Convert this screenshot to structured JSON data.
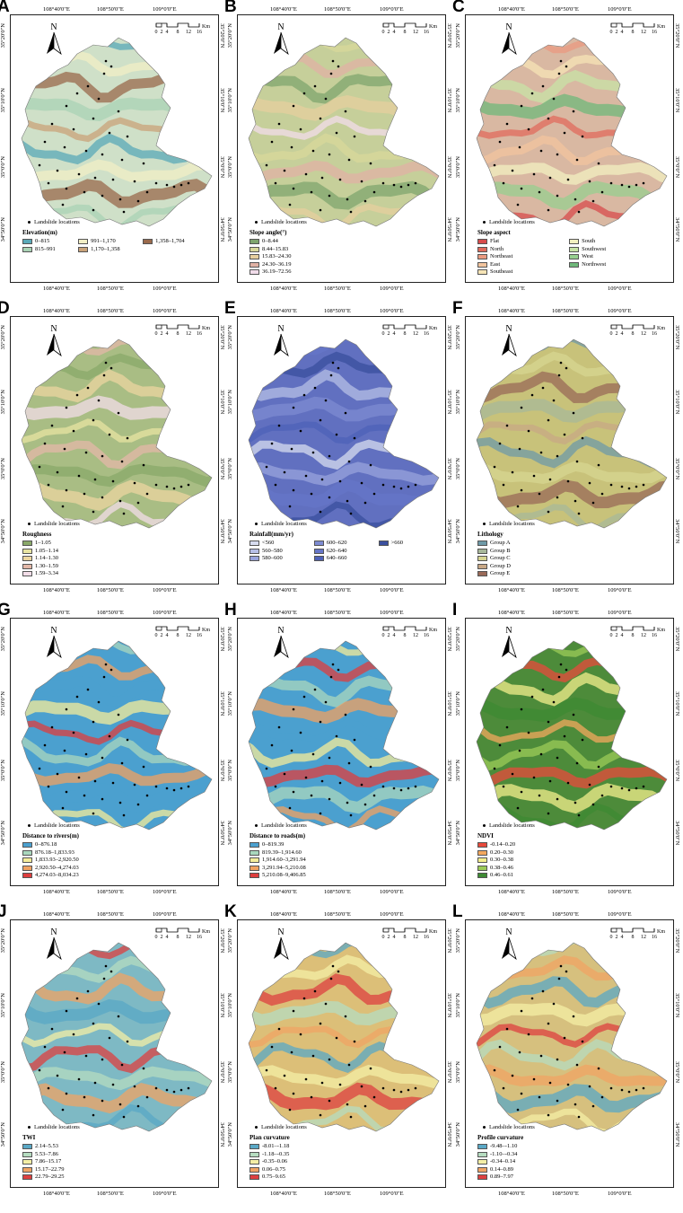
{
  "lon_labels": [
    "108°40'0\"E",
    "108°50'0\"E",
    "109°0'0\"E"
  ],
  "lat_labels": [
    "35°20'0\"N",
    "35°10'0\"N",
    "35°0'0\"N",
    "34°50'0\"N"
  ],
  "north_label": "N",
  "scale": {
    "ticks": [
      "0",
      "2",
      "4",
      "8",
      "12",
      "16"
    ],
    "unit": "Km"
  },
  "landslide_label": "Landslide locations",
  "panels": [
    {
      "letter": "A",
      "title": "Elevation(m)",
      "rows": 2,
      "bg": "#cfe0c8",
      "classes": [
        {
          "label": "0–815",
          "color": "#5aa9b8"
        },
        {
          "label": "815–991",
          "color": "#a9d3b5"
        },
        {
          "label": "991–1,170",
          "color": "#f2efc6"
        },
        {
          "label": "1,170–1,358",
          "color": "#c9a37a"
        },
        {
          "label": "1,358–1,704",
          "color": "#9a6a4c"
        }
      ]
    },
    {
      "letter": "B",
      "title": "Slope angle(°)",
      "rows": 5,
      "bg": "#c6cf9a",
      "classes": [
        {
          "label": "0–8.44",
          "color": "#7fa56e"
        },
        {
          "label": "8.44–15.83",
          "color": "#d8d89a"
        },
        {
          "label": "15.83–24.30",
          "color": "#e6cf9e"
        },
        {
          "label": "24.30–36.19",
          "color": "#e0b1a4"
        },
        {
          "label": "36.19–72.56",
          "color": "#f1dcea"
        }
      ]
    },
    {
      "letter": "C",
      "title": "Slope aspect",
      "rows": 5,
      "bg": "#d9b8a2",
      "classes": [
        {
          "label": "Flat",
          "color": "#d74c4c"
        },
        {
          "label": "North",
          "color": "#e06b5c"
        },
        {
          "label": "Northeast",
          "color": "#ea9a80"
        },
        {
          "label": "East",
          "color": "#f2c49e"
        },
        {
          "label": "Southeast",
          "color": "#f6e4b6"
        },
        {
          "label": "South",
          "color": "#f2f0c0"
        },
        {
          "label": "Southwest",
          "color": "#c7e3a5"
        },
        {
          "label": "West",
          "color": "#97cf8f"
        },
        {
          "label": "Northwest",
          "color": "#6fb87a"
        }
      ]
    },
    {
      "letter": "D",
      "title": "Roughness",
      "rows": 5,
      "bg": "#a9bd84",
      "classes": [
        {
          "label": "1–1.05",
          "color": "#8aa96a"
        },
        {
          "label": "1.05–1.14",
          "color": "#e8e4a2"
        },
        {
          "label": "1.14–1.30",
          "color": "#ecd6a0"
        },
        {
          "label": "1.30–1.59",
          "color": "#e4b8a8"
        },
        {
          "label": "1.59–3.34",
          "color": "#f3dde8"
        }
      ]
    },
    {
      "letter": "E",
      "title": "Rainfall(mm/yr)",
      "rows": 3,
      "bg": "#6170c0",
      "classes": [
        {
          "label": "<560",
          "color": "#d7dcef"
        },
        {
          "label": "560–580",
          "color": "#b6bfe6"
        },
        {
          "label": "580–600",
          "color": "#98a3dc"
        },
        {
          "label": "600–620",
          "color": "#7d8bd2"
        },
        {
          "label": "620–640",
          "color": "#6676c8"
        },
        {
          "label": "640–660",
          "color": "#4e61b8"
        },
        {
          "label": ">660",
          "color": "#3a4f9e"
        }
      ]
    },
    {
      "letter": "F",
      "title": "Lithology",
      "rows": 5,
      "bg": "#c8c27a",
      "classes": [
        {
          "label": "Group A",
          "color": "#6f9aa8"
        },
        {
          "label": "Group B",
          "color": "#a8b89a"
        },
        {
          "label": "Group C",
          "color": "#d7d592"
        },
        {
          "label": "Group D",
          "color": "#c8a886"
        },
        {
          "label": "Group E",
          "color": "#9a6a58"
        }
      ]
    },
    {
      "letter": "G",
      "title": "Distance to rivers(m)",
      "rows": 5,
      "bg": "#4ba0cf",
      "classes": [
        {
          "label": "0–876.18",
          "color": "#4ba0cf"
        },
        {
          "label": "876.18–1,833.93",
          "color": "#a9d7bd"
        },
        {
          "label": "1,833.93–2,920.50",
          "color": "#f4ec9a"
        },
        {
          "label": "2,920.50–4,274.03",
          "color": "#f0a262"
        },
        {
          "label": "4,274.03–8,034.23",
          "color": "#dd3e3e"
        }
      ]
    },
    {
      "letter": "H",
      "title": "Distance to roads(m)",
      "rows": 5,
      "bg": "#4ba0cf",
      "classes": [
        {
          "label": "0–819.39",
          "color": "#4ba0cf"
        },
        {
          "label": "819.39–1,914.60",
          "color": "#a9d7bd"
        },
        {
          "label": "1,914.60–3,291.94",
          "color": "#f4ec9a"
        },
        {
          "label": "3,291.94–5,210.08",
          "color": "#f0a262"
        },
        {
          "label": "5,210.08–9,406.85",
          "color": "#dd3e3e"
        }
      ]
    },
    {
      "letter": "I",
      "title": "NDVI",
      "rows": 5,
      "bg": "#4d8b3a",
      "classes": [
        {
          "label": "-0.14–0.20",
          "color": "#e84a3c"
        },
        {
          "label": "0.20–0.30",
          "color": "#f3a85e"
        },
        {
          "label": "0.30–0.38",
          "color": "#f3ee8c"
        },
        {
          "label": "0.38–0.46",
          "color": "#9ccb58"
        },
        {
          "label": "0.46–0.61",
          "color": "#3e8a33"
        }
      ]
    },
    {
      "letter": "J",
      "title": "TWI",
      "rows": 5,
      "bg": "#7eb9c4",
      "classes": [
        {
          "label": "2.14–5.53",
          "color": "#5aa8c6"
        },
        {
          "label": "5.53–7.86",
          "color": "#b5dcc0"
        },
        {
          "label": "7.86–15.17",
          "color": "#f4efa6"
        },
        {
          "label": "15.17–22.79",
          "color": "#f0a464"
        },
        {
          "label": "22.79–29.25",
          "color": "#dd4040"
        }
      ]
    },
    {
      "letter": "K",
      "title": "Plan curvature",
      "rows": 5,
      "bg": "#dcbf78",
      "classes": [
        {
          "label": "-8.01–-1.18",
          "color": "#5aa8c6"
        },
        {
          "label": "-1.18–-0.35",
          "color": "#b5dcc0"
        },
        {
          "label": "-0.35–0.06",
          "color": "#f4efa6"
        },
        {
          "label": "0.06–0.75",
          "color": "#f0a464"
        },
        {
          "label": "0.75–9.65",
          "color": "#dd4040"
        }
      ]
    },
    {
      "letter": "L",
      "title": "Profile curvature",
      "rows": 5,
      "bg": "#d6c07e",
      "classes": [
        {
          "label": "-9.48–-1.10",
          "color": "#5aa8c6"
        },
        {
          "label": "-1.10–-0.34",
          "color": "#b5dcc0"
        },
        {
          "label": "-0.34–0.14",
          "color": "#f4efa6"
        },
        {
          "label": "0.14–0.89",
          "color": "#f0a464"
        },
        {
          "label": "0.89–7.97",
          "color": "#dd4040"
        }
      ]
    }
  ]
}
